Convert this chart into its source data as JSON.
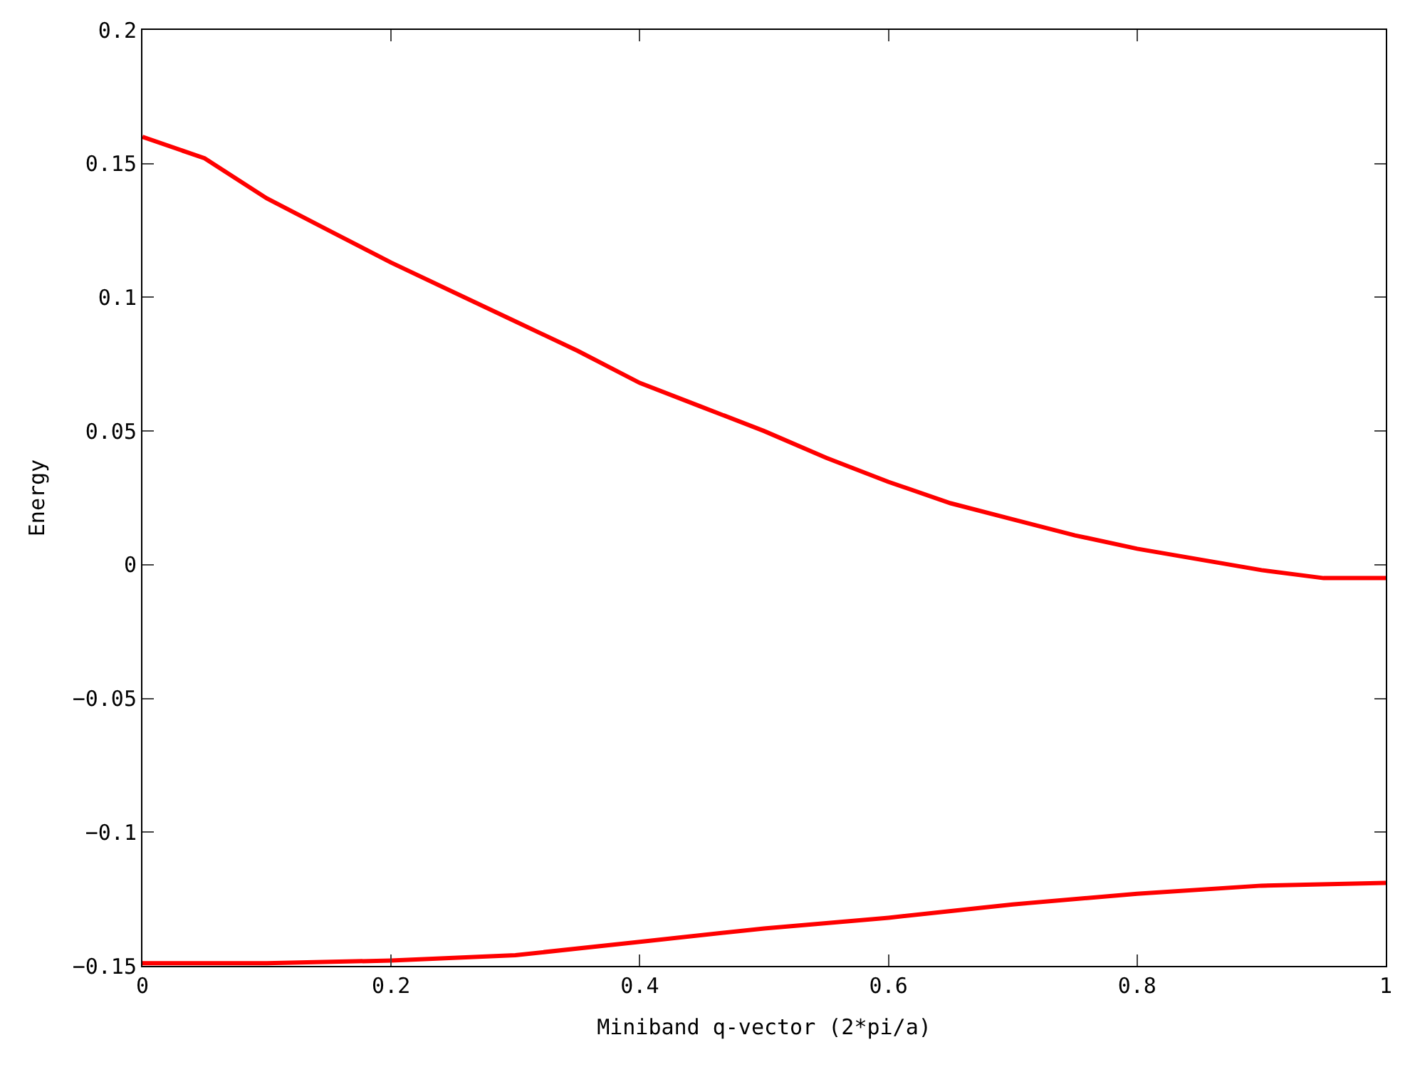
{
  "chart_data": {
    "type": "line",
    "xlabel": "Miniband q-vector (2*pi/a)",
    "ylabel": "Energy",
    "xlim": [
      0,
      1
    ],
    "xticks": [
      0,
      0.2,
      0.4,
      0.6,
      0.8,
      1
    ],
    "ylim": [
      -0.15,
      0.2
    ],
    "yticks": [
      -0.15,
      -0.1,
      -0.05,
      0,
      0.05,
      0.1,
      0.15,
      0.2
    ],
    "legend": false,
    "line_style": "solid",
    "marker": "none",
    "series": [
      {
        "color": "#ff0000",
        "x": [
          0,
          0.05,
          0.1,
          0.15,
          0.2,
          0.25,
          0.3,
          0.35,
          0.4,
          0.45,
          0.5,
          0.55,
          0.6,
          0.65,
          0.7,
          0.75,
          0.8,
          0.85,
          0.9,
          0.95,
          1
        ],
        "values": [
          0.16,
          0.152,
          0.137,
          0.125,
          0.113,
          0.102,
          0.091,
          0.08,
          0.068,
          0.059,
          0.05,
          0.04,
          0.031,
          0.023,
          0.017,
          0.011,
          0.006,
          0.002,
          -0.002,
          -0.005,
          -0.005
        ]
      },
      {
        "color": "#ff0000",
        "x": [
          0,
          0.1,
          0.2,
          0.3,
          0.4,
          0.5,
          0.6,
          0.7,
          0.8,
          0.9,
          1
        ],
        "values": [
          -0.149,
          -0.149,
          -0.148,
          -0.146,
          -0.141,
          -0.136,
          -0.132,
          -0.127,
          -0.123,
          -0.12,
          -0.119
        ]
      }
    ]
  }
}
